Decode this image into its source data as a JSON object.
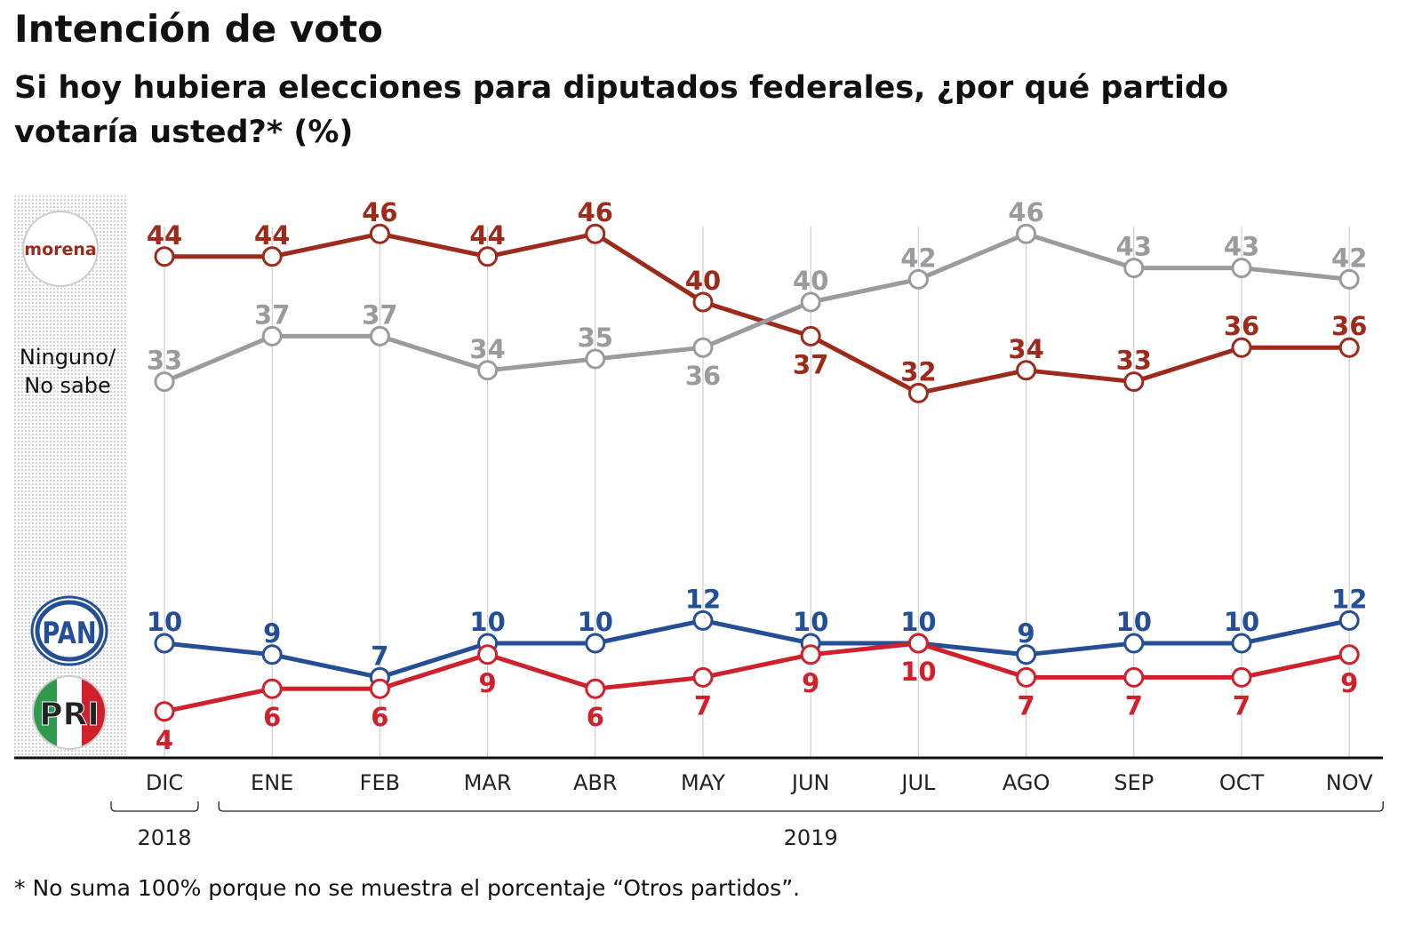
{
  "chart_data": {
    "type": "line",
    "title": "Intención de voto",
    "subtitle": "Si hoy hubiera elecciones para diputados federales, ¿por qué partido votaría usted?* (%)",
    "footnote": "* No suma 100% porque no se muestra el porcentaje “Otros partidos”.",
    "categories": [
      "DIC",
      "ENE",
      "FEB",
      "MAR",
      "ABR",
      "MAY",
      "JUN",
      "JUL",
      "AGO",
      "SEP",
      "OCT",
      "NOV"
    ],
    "year_groups": [
      {
        "label": "2018",
        "from": 0,
        "to": 0
      },
      {
        "label": "2019",
        "from": 1,
        "to": 11
      }
    ],
    "ylim": [
      0,
      50
    ],
    "grid": "vertical",
    "series": [
      {
        "name": "morena",
        "legend": "morena",
        "color": "#9e2a1b",
        "values": [
          44,
          44,
          46,
          44,
          46,
          40,
          37,
          32,
          34,
          33,
          36,
          36
        ],
        "label_positions": [
          "above",
          "above",
          "above",
          "above",
          "above",
          "above",
          "below",
          "above",
          "above",
          "above",
          "above",
          "above"
        ]
      },
      {
        "name": "Ninguno/No sabe",
        "legend": "Ninguno/ No sabe",
        "color": "#9b9b9f",
        "values": [
          33,
          37,
          37,
          34,
          35,
          36,
          40,
          42,
          46,
          43,
          43,
          42
        ],
        "label_positions": [
          "above",
          "above",
          "above",
          "above",
          "above",
          "below",
          "above",
          "above",
          "above",
          "above",
          "above",
          "above"
        ]
      },
      {
        "name": "PAN",
        "legend": "PAN",
        "color": "#244f97",
        "values": [
          10,
          9,
          7,
          10,
          10,
          12,
          10,
          10,
          9,
          10,
          10,
          12
        ],
        "label_positions": [
          "above",
          "above",
          "above",
          "above",
          "above",
          "above",
          "above",
          "above",
          "above",
          "above",
          "above",
          "above"
        ]
      },
      {
        "name": "PRI",
        "legend": "PRI",
        "color": "#d0202c",
        "values": [
          4,
          6,
          6,
          9,
          6,
          7,
          9,
          10,
          7,
          7,
          7,
          9
        ],
        "label_positions": [
          "below",
          "below",
          "below",
          "below",
          "below",
          "below",
          "below",
          "below",
          "below",
          "below",
          "below",
          "below"
        ]
      }
    ]
  }
}
